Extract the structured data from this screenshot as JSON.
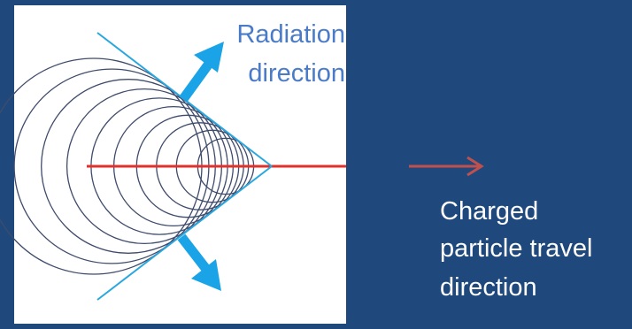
{
  "radiation_label": [
    "Radiation",
    "direction"
  ],
  "travel_label": [
    "Charged",
    "particle travel",
    "direction"
  ],
  "colors": {
    "background": "#1f497d",
    "panel": "#ffffff",
    "wavefront": "#3f4b6b",
    "cone": "#29a8e0",
    "particle_path": "#e0312b",
    "travel_arrow": "#c0504d",
    "radiation_label": "#4a7bc8",
    "travel_label": "#ffffff"
  },
  "icons": [
    "radiation-arrow-icon",
    "travel-direction-arrow-icon"
  ]
}
